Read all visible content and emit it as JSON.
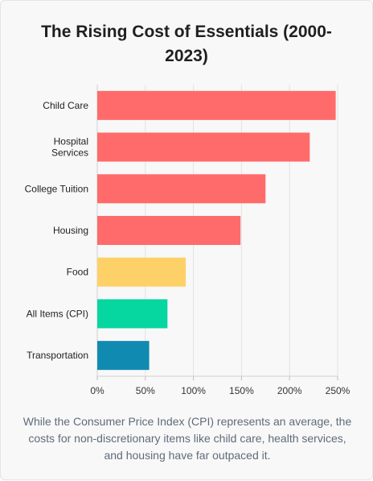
{
  "header": {
    "title": "The Rising Cost of Essentials (2000-2023)"
  },
  "footer": {
    "note": "While the Consumer Price Index (CPI) represents an average, the costs for non-discretionary items like child care, health services, and housing have far outpaced it."
  },
  "chart_data": {
    "type": "bar",
    "orientation": "horizontal",
    "title": "The Rising Cost of Essentials (2000-2023)",
    "categories": [
      "Child Care",
      "Hospital Services",
      "College Tuition",
      "Housing",
      "Food",
      "All Items (CPI)",
      "Transportation"
    ],
    "category_lines": [
      [
        "Child Care"
      ],
      [
        "Hospital",
        "Services"
      ],
      [
        "College Tuition"
      ],
      [
        "Housing"
      ],
      [
        "Food"
      ],
      [
        "All Items (CPI)"
      ],
      [
        "Transportation"
      ]
    ],
    "values": [
      248,
      221,
      175,
      149,
      92,
      73,
      54
    ],
    "colors": [
      "#ff6b6b",
      "#ff6b6b",
      "#ff6b6b",
      "#ff6b6b",
      "#fdd167",
      "#06d6a0",
      "#118ab2"
    ],
    "xticks": [
      "0%",
      "50%",
      "100%",
      "150%",
      "200%",
      "250%"
    ],
    "xlim": [
      0,
      250
    ],
    "grid": true,
    "legend": "none"
  }
}
